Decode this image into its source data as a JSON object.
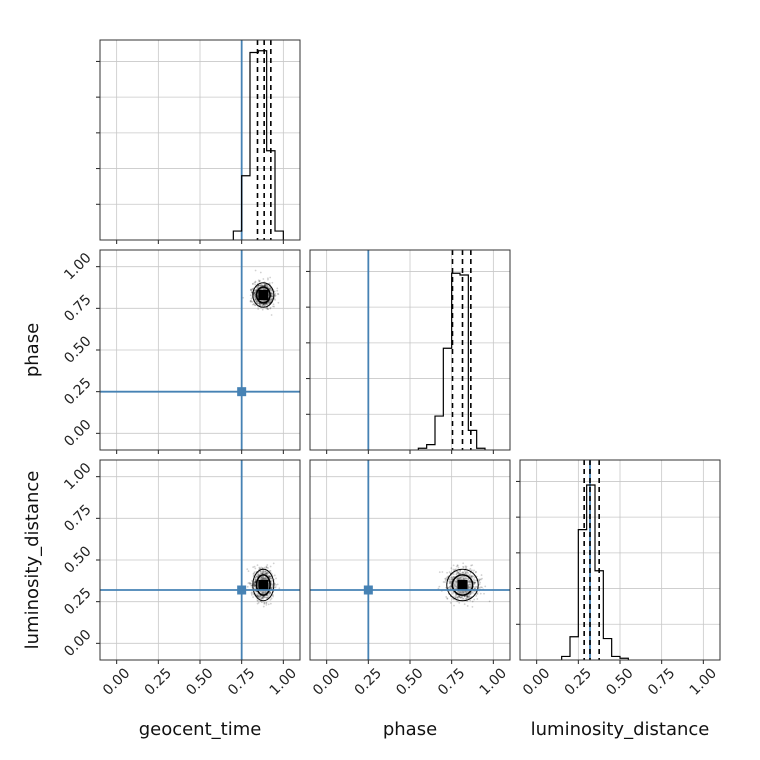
{
  "chart_data": {
    "type": "corner",
    "parameters": [
      "geocent_time",
      "phase",
      "luminosity_distance"
    ],
    "axis_labels": {
      "geocent_time": "geocent_time",
      "phase": "phase",
      "luminosity_distance": "luminosity_distance"
    },
    "axis_range": [
      -0.1,
      1.1
    ],
    "ticks": [
      0.0,
      0.25,
      0.5,
      0.75,
      1.0
    ],
    "tick_labels": [
      "0.00",
      "0.25",
      "0.50",
      "0.75",
      "1.00"
    ],
    "grid": true,
    "truths": {
      "geocent_time": 0.75,
      "phase": 0.25,
      "luminosity_distance": 0.32
    },
    "truth_color": "#4682b4",
    "sample_color": "#000000",
    "histograms": {
      "geocent_time": {
        "bin_edges": [
          0.7,
          0.75,
          0.8,
          0.85,
          0.9,
          0.95,
          1.0
        ],
        "counts": [
          0.05,
          0.36,
          1.05,
          1.06,
          0.5,
          0.05
        ],
        "quantiles": [
          0.845,
          0.885,
          0.925
        ]
      },
      "phase": {
        "bin_edges": [
          0.55,
          0.6,
          0.65,
          0.7,
          0.75,
          0.8,
          0.85,
          0.9,
          0.95
        ],
        "counts": [
          0.01,
          0.03,
          0.19,
          0.57,
          0.99,
          0.98,
          0.11,
          0.01
        ],
        "quantiles": [
          0.755,
          0.815,
          0.865
        ]
      },
      "luminosity_distance": {
        "bin_edges": [
          0.15,
          0.2,
          0.25,
          0.3,
          0.35,
          0.4,
          0.45,
          0.5,
          0.55
        ],
        "counts": [
          0.02,
          0.13,
          0.73,
          0.98,
          0.5,
          0.12,
          0.02,
          0.01
        ],
        "quantiles": [
          0.285,
          0.32,
          0.375
        ]
      }
    },
    "posterior_2d": [
      {
        "x": "geocent_time",
        "y": "phase",
        "center": [
          0.88,
          0.83
        ],
        "spread": [
          0.03,
          0.035
        ]
      },
      {
        "x": "geocent_time",
        "y": "luminosity_distance",
        "center": [
          0.88,
          0.35
        ],
        "spread": [
          0.03,
          0.045
        ]
      },
      {
        "x": "phase",
        "y": "luminosity_distance",
        "center": [
          0.815,
          0.35
        ],
        "spread": [
          0.045,
          0.045
        ]
      }
    ]
  }
}
